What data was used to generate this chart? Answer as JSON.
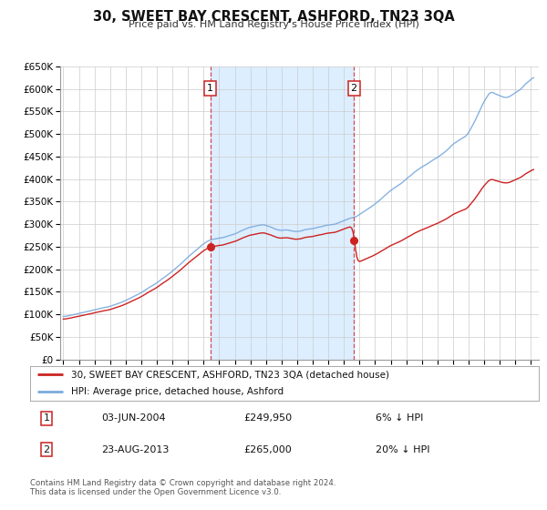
{
  "title": "30, SWEET BAY CRESCENT, ASHFORD, TN23 3QA",
  "subtitle": "Price paid vs. HM Land Registry's House Price Index (HPI)",
  "ylim": [
    0,
    650000
  ],
  "yticks": [
    0,
    50000,
    100000,
    150000,
    200000,
    250000,
    300000,
    350000,
    400000,
    450000,
    500000,
    550000,
    600000,
    650000
  ],
  "xlim_start": 1994.8,
  "xlim_end": 2025.5,
  "sale1_date": 2004.42,
  "sale1_price": 249950,
  "sale1_label": "1",
  "sale2_date": 2013.64,
  "sale2_price": 265000,
  "sale2_label": "2",
  "highlight_color": "#ddeeff",
  "vline_color": "#cc2222",
  "sale_dot_color": "#cc2222",
  "red_line_color": "#cc2222",
  "blue_line_color": "#7aaadd",
  "grid_color": "#cccccc",
  "bg_color": "#ffffff",
  "legend_line1": "30, SWEET BAY CRESCENT, ASHFORD, TN23 3QA (detached house)",
  "legend_line2": "HPI: Average price, detached house, Ashford",
  "table_row1": [
    "1",
    "03-JUN-2004",
    "£249,950",
    "6% ↓ HPI"
  ],
  "table_row2": [
    "2",
    "23-AUG-2013",
    "£265,000",
    "20% ↓ HPI"
  ],
  "footnote1": "Contains HM Land Registry data © Crown copyright and database right 2024.",
  "footnote2": "This data is licensed under the Open Government Licence v3.0."
}
